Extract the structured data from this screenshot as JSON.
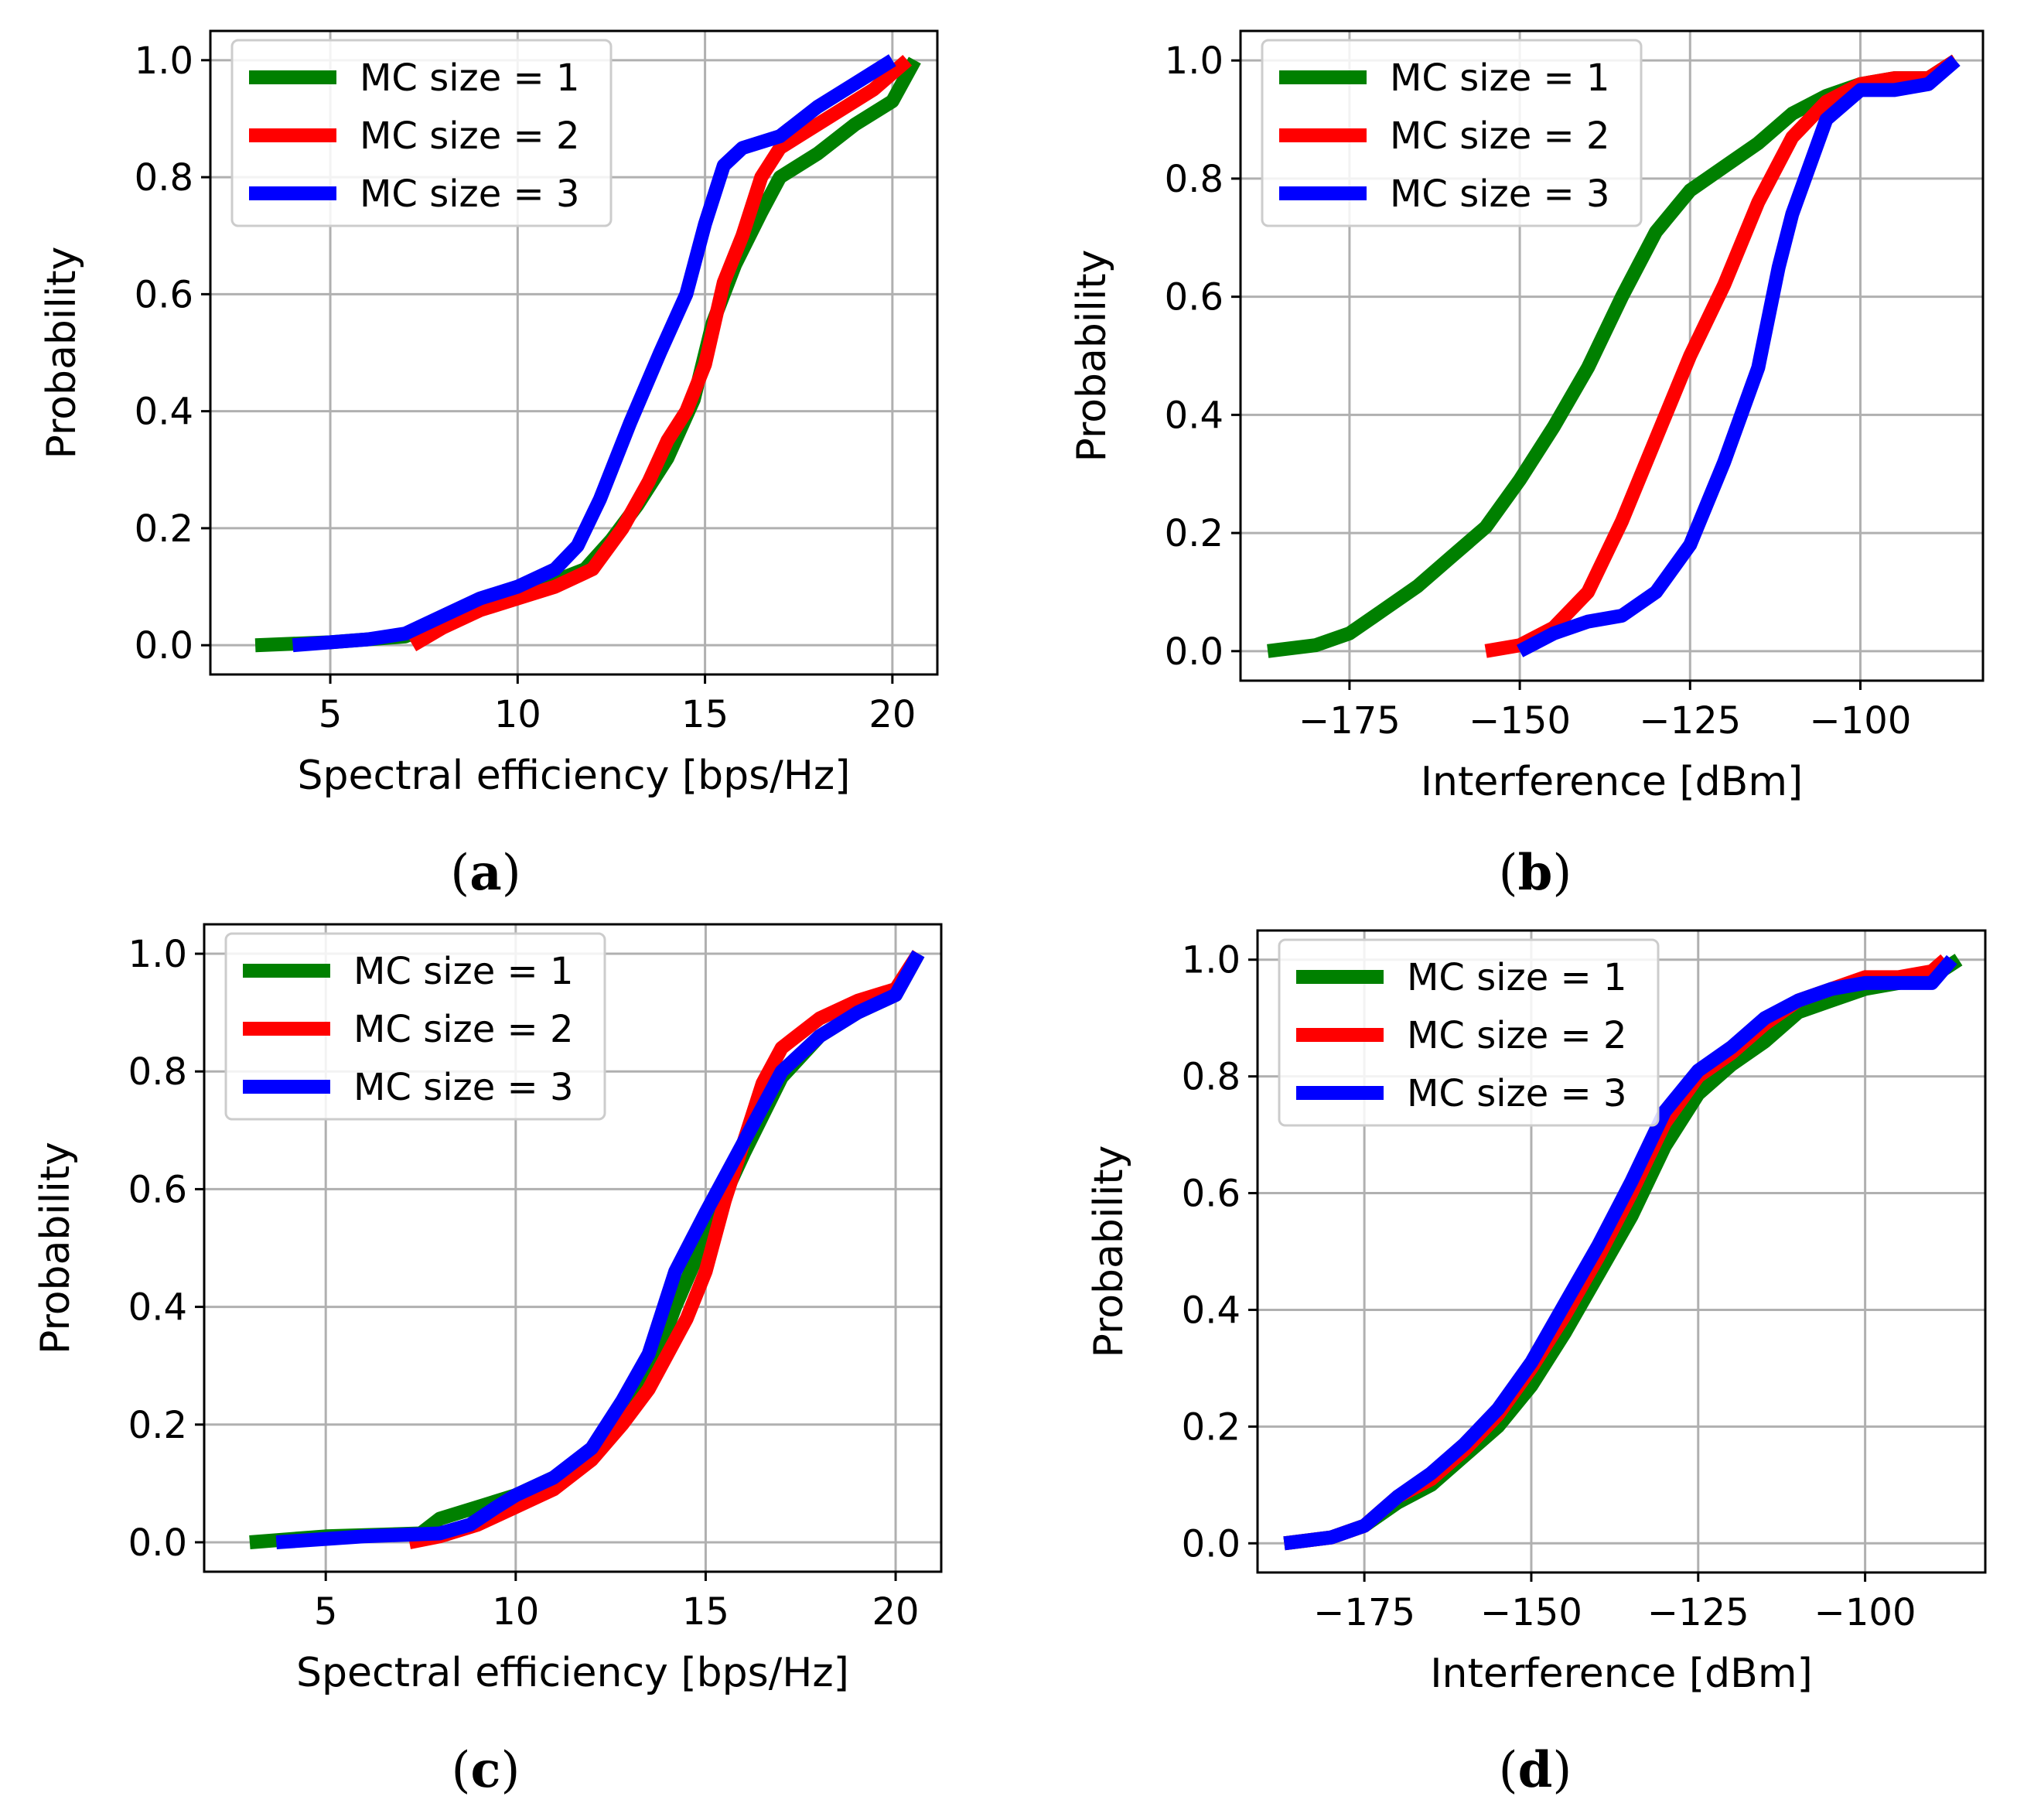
{
  "chart_data": [
    {
      "panel": "(a)",
      "type": "line",
      "xlabel": "Spectral efficiency [bps/Hz]",
      "ylabel": "Probability",
      "xlim": [
        1.8,
        21.2
      ],
      "ylim": [
        -0.05,
        1.05
      ],
      "xticks": [
        5,
        10,
        15,
        20
      ],
      "yticks": [
        0.0,
        0.2,
        0.4,
        0.6,
        0.8,
        1.0
      ],
      "xtick_labels": [
        "5",
        "10",
        "15",
        "20"
      ],
      "ytick_labels": [
        "0.0",
        "0.2",
        "0.4",
        "0.6",
        "0.8",
        "1.0"
      ],
      "grid": true,
      "legend_position": "upper-left",
      "series": [
        {
          "name": "MC size = 1",
          "color": "#008000",
          "x": [
            3.0,
            5.0,
            7.0,
            8.0,
            9.0,
            10.0,
            11.0,
            11.8,
            12.5,
            13.2,
            14.0,
            14.7,
            15.2,
            15.8,
            16.5,
            17.0,
            18.0,
            19.0,
            20.0,
            20.6
          ],
          "y": [
            0.0,
            0.005,
            0.015,
            0.04,
            0.07,
            0.09,
            0.11,
            0.13,
            0.18,
            0.24,
            0.32,
            0.42,
            0.55,
            0.65,
            0.74,
            0.8,
            0.84,
            0.89,
            0.93,
            1.0
          ]
        },
        {
          "name": "MC size = 2",
          "color": "#ff0000",
          "x": [
            7.2,
            8.0,
            9.0,
            10.0,
            11.0,
            12.0,
            12.8,
            13.5,
            14.0,
            14.5,
            15.0,
            15.5,
            16.0,
            16.5,
            17.0,
            17.5,
            18.5,
            19.5,
            20.4
          ],
          "y": [
            0.0,
            0.03,
            0.06,
            0.08,
            0.1,
            0.13,
            0.2,
            0.28,
            0.35,
            0.4,
            0.48,
            0.62,
            0.7,
            0.8,
            0.85,
            0.87,
            0.91,
            0.95,
            1.0
          ]
        },
        {
          "name": "MC size = 3",
          "color": "#0000ff",
          "x": [
            4.0,
            6.0,
            7.0,
            8.0,
            9.0,
            10.0,
            11.0,
            11.6,
            12.2,
            13.0,
            13.8,
            14.5,
            15.0,
            15.5,
            16.0,
            17.0,
            18.0,
            19.0,
            20.0
          ],
          "y": [
            0.0,
            0.01,
            0.02,
            0.05,
            0.08,
            0.1,
            0.13,
            0.17,
            0.25,
            0.38,
            0.5,
            0.6,
            0.72,
            0.82,
            0.85,
            0.87,
            0.92,
            0.96,
            1.0
          ]
        }
      ]
    },
    {
      "panel": "(b)",
      "type": "line",
      "xlabel": "Interference [dBm]",
      "ylabel": "Probability",
      "xlim": [
        -191,
        -82
      ],
      "ylim": [
        -0.05,
        1.05
      ],
      "xticks": [
        -175,
        -150,
        -125,
        -100
      ],
      "yticks": [
        0.0,
        0.2,
        0.4,
        0.6,
        0.8,
        1.0
      ],
      "xtick_labels": [
        "−175",
        "−150",
        "−125",
        "−100"
      ],
      "ytick_labels": [
        "0.0",
        "0.2",
        "0.4",
        "0.6",
        "0.8",
        "1.0"
      ],
      "grid": true,
      "legend_position": "upper-left",
      "series": [
        {
          "name": "MC size = 1",
          "color": "#008000",
          "x": [
            -187,
            -180,
            -175,
            -170,
            -165,
            -160,
            -155,
            -150,
            -145,
            -140,
            -135,
            -130,
            -125,
            -120,
            -115,
            -110,
            -105,
            -100,
            -95,
            -90,
            -86
          ],
          "y": [
            0.0,
            0.01,
            0.03,
            0.07,
            0.11,
            0.16,
            0.21,
            0.29,
            0.38,
            0.48,
            0.6,
            0.71,
            0.78,
            0.82,
            0.86,
            0.91,
            0.94,
            0.96,
            0.97,
            0.97,
            1.0
          ]
        },
        {
          "name": "MC size = 2",
          "color": "#ff0000",
          "x": [
            -155,
            -150,
            -145,
            -140,
            -135,
            -130,
            -125,
            -120,
            -115,
            -110,
            -105,
            -100,
            -95,
            -90,
            -86
          ],
          "y": [
            0.0,
            0.01,
            0.04,
            0.1,
            0.22,
            0.36,
            0.5,
            0.62,
            0.76,
            0.87,
            0.93,
            0.96,
            0.97,
            0.97,
            1.0
          ]
        },
        {
          "name": "MC size = 3",
          "color": "#0000ff",
          "x": [
            -150,
            -145,
            -140,
            -135,
            -130,
            -125,
            -120,
            -115,
            -112,
            -110,
            -105,
            -100,
            -95,
            -90,
            -86
          ],
          "y": [
            0.0,
            0.03,
            0.05,
            0.06,
            0.1,
            0.18,
            0.32,
            0.48,
            0.65,
            0.74,
            0.9,
            0.95,
            0.95,
            0.96,
            1.0
          ]
        }
      ]
    },
    {
      "panel": "(c)",
      "type": "line",
      "xlabel": "Spectral efficiency [bps/Hz]",
      "ylabel": "Probability",
      "xlim": [
        1.8,
        21.2
      ],
      "ylim": [
        -0.05,
        1.05
      ],
      "xticks": [
        5,
        10,
        15,
        20
      ],
      "yticks": [
        0.0,
        0.2,
        0.4,
        0.6,
        0.8,
        1.0
      ],
      "xtick_labels": [
        "5",
        "10",
        "15",
        "20"
      ],
      "ytick_labels": [
        "0.0",
        "0.2",
        "0.4",
        "0.6",
        "0.8",
        "1.0"
      ],
      "grid": true,
      "legend_position": "upper-left",
      "series": [
        {
          "name": "MC size = 1",
          "color": "#008000",
          "x": [
            3.0,
            5.0,
            7.5,
            8.0,
            9.0,
            10.0,
            11.0,
            12.0,
            12.7,
            13.5,
            14.2,
            15.0,
            16.0,
            17.0,
            18.0,
            19.0,
            20.0,
            20.6
          ],
          "y": [
            0.0,
            0.01,
            0.015,
            0.04,
            0.06,
            0.08,
            0.11,
            0.15,
            0.21,
            0.28,
            0.4,
            0.52,
            0.66,
            0.79,
            0.86,
            0.9,
            0.93,
            1.0
          ]
        },
        {
          "name": "MC size = 2",
          "color": "#ff0000",
          "x": [
            7.2,
            8.0,
            9.0,
            10.0,
            11.0,
            12.0,
            12.8,
            13.5,
            14.0,
            14.5,
            15.0,
            15.5,
            16.0,
            16.5,
            17.0,
            18.0,
            19.0,
            20.0,
            20.6
          ],
          "y": [
            0.0,
            0.01,
            0.03,
            0.06,
            0.09,
            0.14,
            0.2,
            0.26,
            0.32,
            0.38,
            0.46,
            0.58,
            0.68,
            0.78,
            0.84,
            0.89,
            0.92,
            0.94,
            1.0
          ]
        },
        {
          "name": "MC size = 3",
          "color": "#0000ff",
          "x": [
            3.7,
            6.0,
            8.0,
            8.8,
            9.5,
            10.0,
            11.0,
            12.0,
            12.8,
            13.5,
            14.2,
            15.0,
            16.0,
            17.0,
            18.0,
            19.0,
            20.0,
            20.6
          ],
          "y": [
            0.0,
            0.01,
            0.015,
            0.03,
            0.06,
            0.08,
            0.11,
            0.16,
            0.24,
            0.32,
            0.46,
            0.56,
            0.68,
            0.8,
            0.86,
            0.9,
            0.93,
            1.0
          ]
        }
      ]
    },
    {
      "panel": "(d)",
      "type": "line",
      "xlabel": "Interference [dBm]",
      "ylabel": "Probability",
      "xlim": [
        -191,
        -82
      ],
      "ylim": [
        -0.05,
        1.05
      ],
      "xticks": [
        -175,
        -150,
        -125,
        -100
      ],
      "yticks": [
        0.0,
        0.2,
        0.4,
        0.6,
        0.8,
        1.0
      ],
      "xtick_labels": [
        "−175",
        "−150",
        "−125",
        "−100"
      ],
      "ytick_labels": [
        "0.0",
        "0.2",
        "0.4",
        "0.6",
        "0.8",
        "1.0"
      ],
      "grid": true,
      "legend_position": "upper-left",
      "series": [
        {
          "name": "MC size = 1",
          "color": "#008000",
          "x": [
            -187,
            -180,
            -175,
            -170,
            -165,
            -160,
            -155,
            -150,
            -145,
            -140,
            -135,
            -130,
            -125,
            -120,
            -115,
            -110,
            -105,
            -100,
            -95,
            -90,
            -86
          ],
          "y": [
            0.0,
            0.01,
            0.03,
            0.07,
            0.1,
            0.15,
            0.2,
            0.27,
            0.36,
            0.46,
            0.56,
            0.68,
            0.77,
            0.82,
            0.86,
            0.91,
            0.93,
            0.95,
            0.96,
            0.97,
            1.0
          ]
        },
        {
          "name": "MC size = 2",
          "color": "#ff0000",
          "x": [
            -187,
            -180,
            -175,
            -170,
            -165,
            -160,
            -155,
            -150,
            -145,
            -140,
            -135,
            -130,
            -125,
            -120,
            -115,
            -110,
            -105,
            -100,
            -95,
            -90,
            -88
          ],
          "y": [
            0.0,
            0.01,
            0.03,
            0.08,
            0.11,
            0.16,
            0.22,
            0.3,
            0.39,
            0.49,
            0.6,
            0.72,
            0.8,
            0.84,
            0.89,
            0.93,
            0.95,
            0.97,
            0.97,
            0.98,
            1.0
          ]
        },
        {
          "name": "MC size = 3",
          "color": "#0000ff",
          "x": [
            -187,
            -180,
            -175,
            -170,
            -165,
            -160,
            -155,
            -150,
            -145,
            -140,
            -135,
            -130,
            -125,
            -120,
            -115,
            -110,
            -105,
            -100,
            -95,
            -90,
            -87
          ],
          "y": [
            0.0,
            0.01,
            0.03,
            0.08,
            0.12,
            0.17,
            0.23,
            0.31,
            0.41,
            0.51,
            0.62,
            0.74,
            0.81,
            0.85,
            0.9,
            0.93,
            0.95,
            0.96,
            0.96,
            0.96,
            1.0
          ]
        }
      ]
    }
  ]
}
